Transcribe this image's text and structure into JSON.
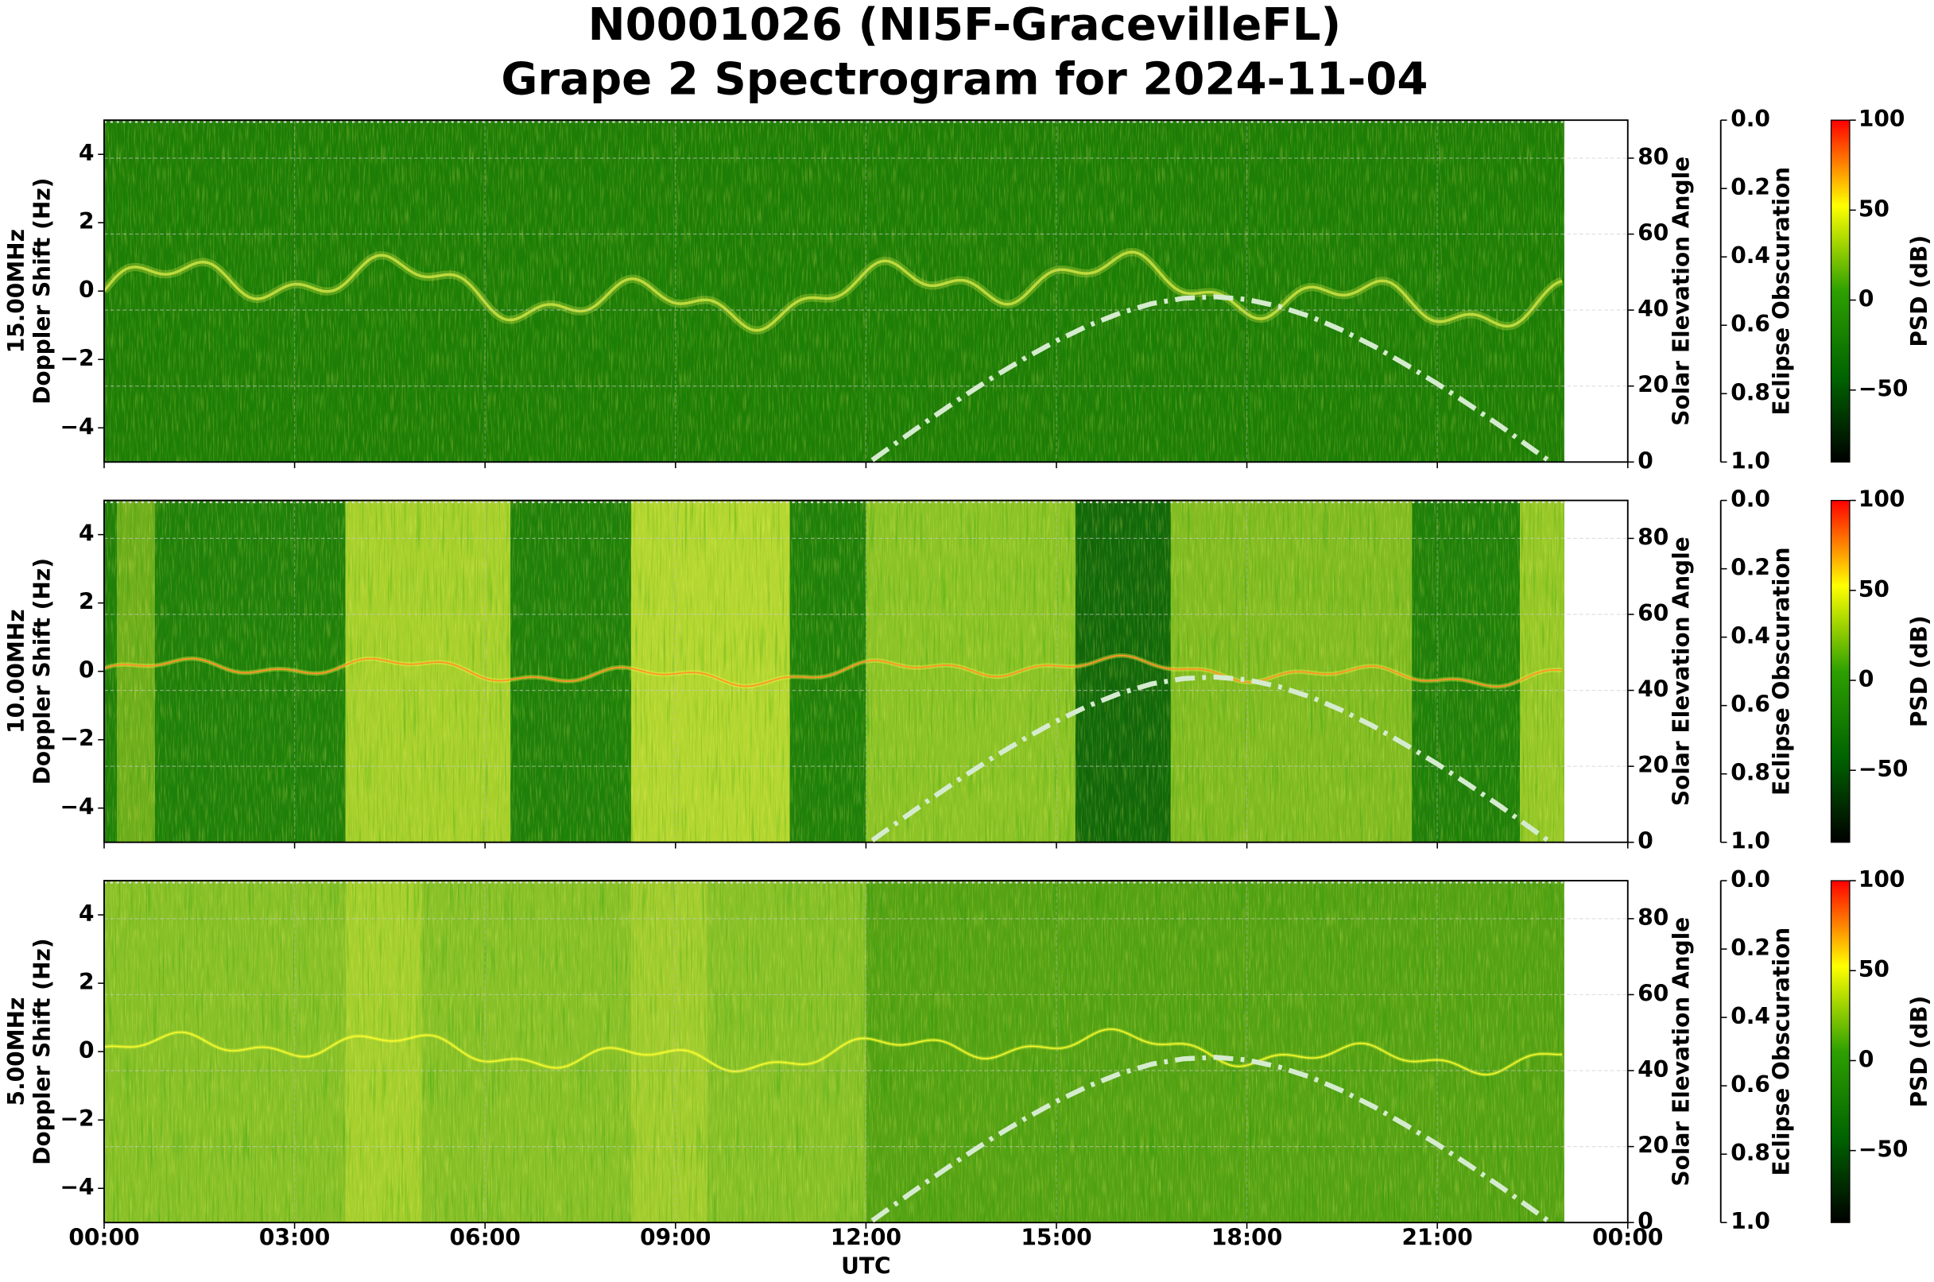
{
  "title": "N0001026 (NI5F-GracevilleFL)",
  "subtitle": "Grape 2 Spectrogram for 2024-11-04",
  "chart_data": [
    {
      "type": "spectrogram",
      "frequency": "15.00MHz",
      "ylabel": "Doppler Shift (Hz)",
      "xlim": [
        0,
        24
      ],
      "ylim": [
        -5,
        5
      ],
      "yticks": [
        {
          "value": -4,
          "label": "−4"
        },
        {
          "value": -2,
          "label": "−2"
        },
        0,
        2,
        4
      ],
      "y2label": "Solar Elevation Angle",
      "y2lim": [
        0,
        90
      ],
      "y2ticks": [
        0,
        20,
        40,
        60,
        80
      ],
      "y3label": "Eclipse Obscuration",
      "y3lim": [
        1,
        0
      ],
      "y3ticks": [
        {
          "value": 0,
          "label": "0.0"
        },
        {
          "value": 0.2,
          "label": "0.2"
        },
        {
          "value": 0.4,
          "label": "0.4"
        },
        {
          "value": 0.6,
          "label": "0.6"
        },
        {
          "value": 0.8,
          "label": "0.8"
        },
        {
          "value": 1,
          "label": "1.0"
        }
      ],
      "clabel": "PSD (dB)",
      "clim": [
        -90,
        100
      ],
      "cticks": [
        100,
        50,
        0,
        {
          "value": -50,
          "label": "−50"
        }
      ],
      "colormap": [
        "#000000",
        "#006400",
        "#2ea000",
        "#ffff00",
        "#ff0000"
      ],
      "grid": true,
      "x": [
        12.1,
        12.5,
        13,
        13.5,
        14,
        14.5,
        15,
        15.5,
        16,
        16.5,
        17,
        17.5,
        18,
        18.5,
        19,
        19.5,
        20,
        20.5,
        21,
        21.5,
        22,
        22.5,
        22.75
      ],
      "series": [
        {
          "color": "#d5ebcf",
          "axis": "y2",
          "linestyle": "dashdot",
          "values": [
            0.5,
            5.3,
            11.2,
            16.9,
            22.3,
            27.3,
            31.9,
            35.9,
            39.2,
            41.7,
            43.1,
            43.5,
            42.8,
            41.0,
            38.3,
            34.7,
            30.5,
            25.7,
            20.6,
            15.1,
            9.4,
            3.4,
            0.4
          ]
        }
      ]
    },
    {
      "type": "spectrogram",
      "frequency": "10.00MHz",
      "ylabel": "Doppler Shift (Hz)",
      "xlim": [
        0,
        24
      ],
      "ylim": [
        -5,
        5
      ],
      "yticks": [
        {
          "value": -4,
          "label": "−4"
        },
        {
          "value": -2,
          "label": "−2"
        },
        0,
        2,
        4
      ],
      "y2label": "Solar Elevation Angle",
      "y2lim": [
        0,
        90
      ],
      "y2ticks": [
        0,
        20,
        40,
        60,
        80
      ],
      "y3label": "Eclipse Obscuration",
      "y3lim": [
        1,
        0
      ],
      "y3ticks": [
        {
          "value": 0,
          "label": "0.0"
        },
        {
          "value": 0.2,
          "label": "0.2"
        },
        {
          "value": 0.4,
          "label": "0.4"
        },
        {
          "value": 0.6,
          "label": "0.6"
        },
        {
          "value": 0.8,
          "label": "0.8"
        },
        {
          "value": 1,
          "label": "1.0"
        }
      ],
      "clabel": "PSD (dB)",
      "clim": [
        -90,
        100
      ],
      "cticks": [
        100,
        50,
        0,
        {
          "value": -50,
          "label": "−50"
        }
      ],
      "colormap": [
        "#000000",
        "#006400",
        "#2ea000",
        "#ffff00",
        "#ff0000"
      ],
      "grid": true,
      "x": [
        12.1,
        12.5,
        13,
        13.5,
        14,
        14.5,
        15,
        15.5,
        16,
        16.5,
        17,
        17.5,
        18,
        18.5,
        19,
        19.5,
        20,
        20.5,
        21,
        21.5,
        22,
        22.5,
        22.75
      ],
      "series": [
        {
          "color": "#d5ebcf",
          "axis": "y2",
          "linestyle": "dashdot",
          "values": [
            0.5,
            5.3,
            11.2,
            16.9,
            22.3,
            27.3,
            31.9,
            35.9,
            39.2,
            41.7,
            43.1,
            43.5,
            42.8,
            41.0,
            38.3,
            34.7,
            30.5,
            25.7,
            20.6,
            15.1,
            9.4,
            3.4,
            0.4
          ]
        }
      ]
    },
    {
      "type": "spectrogram",
      "frequency": "5.00MHz",
      "ylabel": "Doppler Shift (Hz)",
      "xlabel": "UTC",
      "xlim": [
        0,
        24
      ],
      "xticks": [
        {
          "value": 0,
          "label": "00:00"
        },
        {
          "value": 3,
          "label": "03:00"
        },
        {
          "value": 6,
          "label": "06:00"
        },
        {
          "value": 9,
          "label": "09:00"
        },
        {
          "value": 12,
          "label": "12:00"
        },
        {
          "value": 15,
          "label": "15:00"
        },
        {
          "value": 18,
          "label": "18:00"
        },
        {
          "value": 21,
          "label": "21:00"
        },
        {
          "value": 24,
          "label": "00:00"
        }
      ],
      "ylim": [
        -5,
        5
      ],
      "yticks": [
        {
          "value": -4,
          "label": "−4"
        },
        {
          "value": -2,
          "label": "−2"
        },
        0,
        2,
        4
      ],
      "y2label": "Solar Elevation Angle",
      "y2lim": [
        0,
        90
      ],
      "y2ticks": [
        0,
        20,
        40,
        60,
        80
      ],
      "y3label": "Eclipse Obscuration",
      "y3lim": [
        1,
        0
      ],
      "y3ticks": [
        {
          "value": 0,
          "label": "0.0"
        },
        {
          "value": 0.2,
          "label": "0.2"
        },
        {
          "value": 0.4,
          "label": "0.4"
        },
        {
          "value": 0.6,
          "label": "0.6"
        },
        {
          "value": 0.8,
          "label": "0.8"
        },
        {
          "value": 1,
          "label": "1.0"
        }
      ],
      "clabel": "PSD (dB)",
      "clim": [
        -90,
        100
      ],
      "cticks": [
        100,
        50,
        0,
        {
          "value": -50,
          "label": "−50"
        }
      ],
      "colormap": [
        "#000000",
        "#006400",
        "#2ea000",
        "#ffff00",
        "#ff0000"
      ],
      "grid": true,
      "x": [
        12.1,
        12.5,
        13,
        13.5,
        14,
        14.5,
        15,
        15.5,
        16,
        16.5,
        17,
        17.5,
        18,
        18.5,
        19,
        19.5,
        20,
        20.5,
        21,
        21.5,
        22,
        22.5,
        22.75
      ],
      "series": [
        {
          "color": "#d5ebcf",
          "axis": "y2",
          "linestyle": "dashdot",
          "values": [
            0.5,
            5.3,
            11.2,
            16.9,
            22.3,
            27.3,
            31.9,
            35.9,
            39.2,
            41.7,
            43.1,
            43.5,
            42.8,
            41.0,
            38.3,
            34.7,
            30.5,
            25.7,
            20.6,
            15.1,
            9.4,
            3.4,
            0.4
          ]
        }
      ]
    }
  ]
}
